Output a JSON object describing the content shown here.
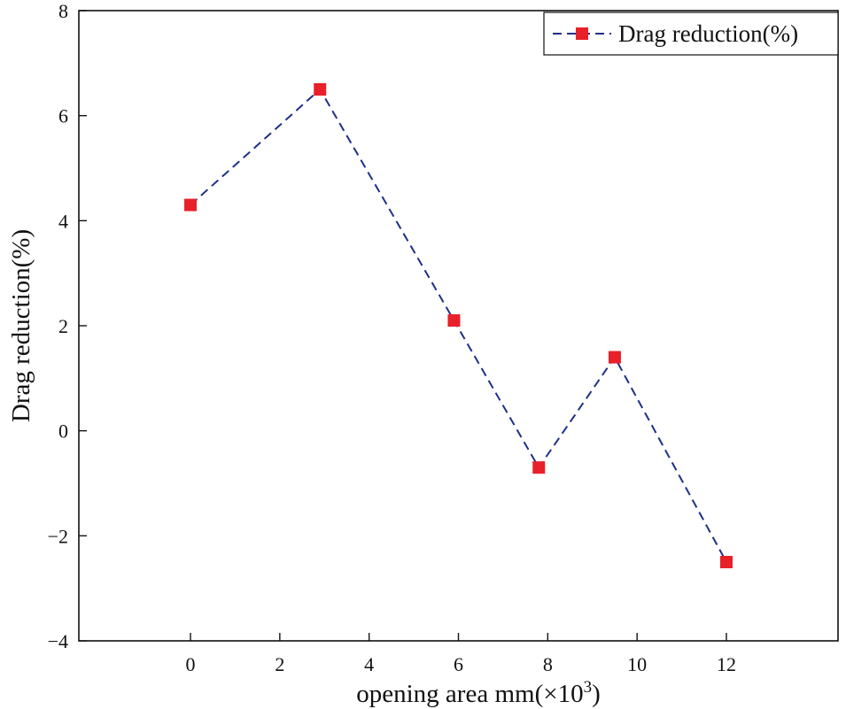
{
  "chart_data": {
    "type": "line",
    "title": "",
    "xlabel": "opening area mm(×10",
    "xlabel_sup": "3",
    "xlabel_close": ")",
    "ylabel": "Drag reduction(%)",
    "xlim": [
      -2.5,
      14.5
    ],
    "ylim": [
      -4,
      8
    ],
    "xticks": [
      "0",
      "2",
      "4",
      "6",
      "8",
      "10",
      "12"
    ],
    "yticks": [
      "−4",
      "−2",
      "0",
      "2",
      "4",
      "6",
      "8"
    ],
    "grid": false,
    "legend_position": "top-right",
    "series": [
      {
        "name": "Drag reduction(%)",
        "line_color": "#1f2f8a",
        "marker_color": "#e8202a",
        "line_style": "dashed",
        "marker": "square",
        "x": [
          0,
          2.9,
          5.9,
          7.8,
          9.5,
          12
        ],
        "y": [
          4.3,
          6.5,
          2.1,
          -0.7,
          1.4,
          -2.5
        ]
      }
    ]
  }
}
